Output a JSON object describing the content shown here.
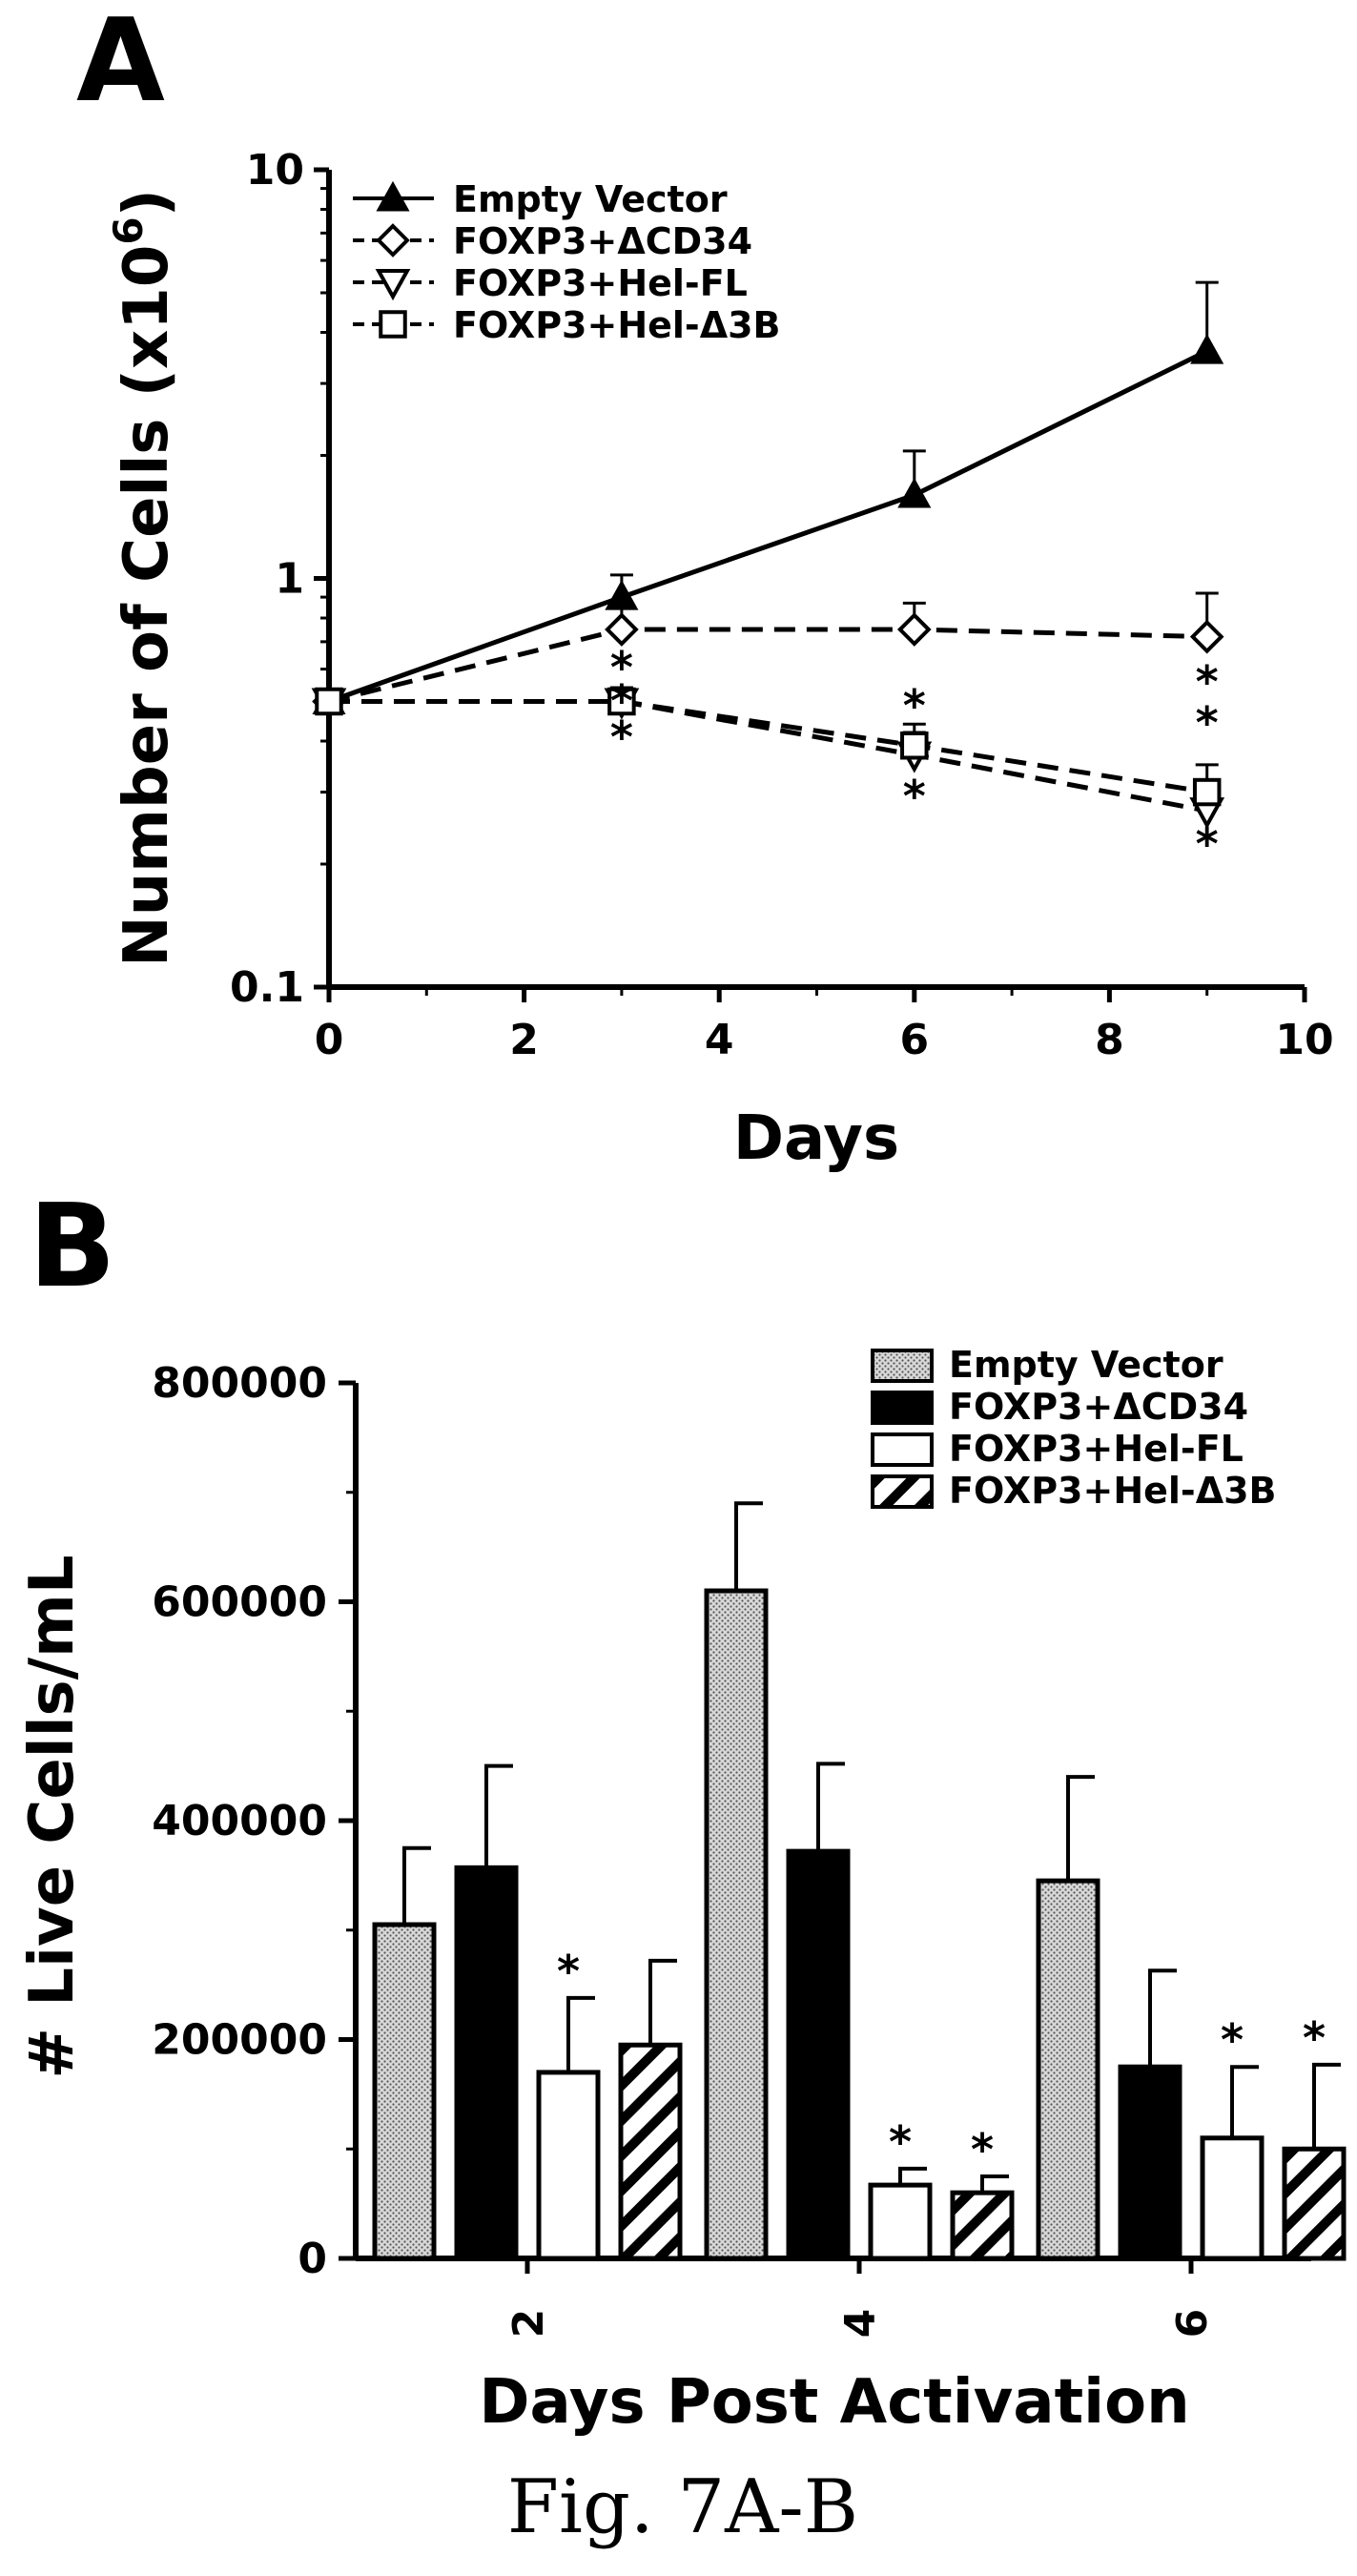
{
  "caption": "Fig. 7A-B",
  "chart_data": [
    {
      "panel": "A",
      "type": "line",
      "xlabel": "Days",
      "ylabel": "Number of Cells (x10",
      "ylabel_sup": "6",
      "ylabel_end": ")",
      "xlim": [
        0,
        10
      ],
      "ylim": [
        0.1,
        10
      ],
      "yscale": "log",
      "xticks": [
        "0",
        "2",
        "4",
        "6",
        "8",
        "10"
      ],
      "yticks": [
        "0.1",
        "1",
        "10"
      ],
      "grid": false,
      "legend_position": "top-left",
      "x": [
        0,
        3,
        6,
        9
      ],
      "series": [
        {
          "name": "Empty Vector",
          "values": [
            0.5,
            0.9,
            1.6,
            3.6
          ],
          "errors": [
            0.02,
            0.12,
            0.45,
            1.7
          ],
          "marker": "filled-triangle",
          "style": "solid"
        },
        {
          "name": "FOXP3+ΔCD34",
          "values": [
            0.5,
            0.75,
            0.75,
            0.72
          ],
          "errors": [
            0.02,
            0.1,
            0.12,
            0.2
          ],
          "marker": "open-diamond",
          "style": "dashed"
        },
        {
          "name": "FOXP3+Hel-FL",
          "values": [
            0.5,
            0.5,
            0.37,
            0.27
          ],
          "errors": [
            0.02,
            0.04,
            0.05,
            0.05
          ],
          "marker": "open-triangle-down",
          "style": "dashed"
        },
        {
          "name": "FOXP3+Hel-Δ3B",
          "values": [
            0.5,
            0.5,
            0.39,
            0.3
          ],
          "errors": [
            0.02,
            0.04,
            0.05,
            0.05
          ],
          "marker": "open-square",
          "style": "dashed"
        }
      ],
      "annotations": [
        {
          "x": 3,
          "labels": [
            "*",
            "*",
            "*"
          ]
        },
        {
          "x": 6,
          "labels": [
            "*",
            "*"
          ]
        },
        {
          "x": 9,
          "labels": [
            "*",
            "*",
            "*"
          ]
        }
      ]
    },
    {
      "panel": "B",
      "type": "bar",
      "xlabel": "Days Post Activation",
      "ylabel": "# Live Cells/mL",
      "ylim": [
        0,
        800000
      ],
      "yticks": [
        "0",
        "200000",
        "400000",
        "600000",
        "800000"
      ],
      "categories": [
        "2",
        "4",
        "6"
      ],
      "grid": false,
      "legend_position": "top-right",
      "series": [
        {
          "name": "Empty Vector",
          "values": [
            305000,
            610000,
            345000
          ],
          "errors": [
            70000,
            80000,
            95000
          ],
          "fill": "stippled-gray"
        },
        {
          "name": "FOXP3+ΔCD34",
          "values": [
            357000,
            372000,
            175000
          ],
          "errors": [
            93000,
            80000,
            88000
          ],
          "fill": "black"
        },
        {
          "name": "FOXP3+Hel-FL",
          "values": [
            170000,
            67000,
            110000
          ],
          "errors": [
            68000,
            15000,
            65000
          ],
          "fill": "white"
        },
        {
          "name": "FOXP3+Hel-Δ3B",
          "values": [
            195000,
            60000,
            100000
          ],
          "errors": [
            77000,
            15000,
            77000
          ],
          "fill": "hatched"
        }
      ],
      "significance": [
        {
          "category": "2",
          "series": "FOXP3+Hel-FL",
          "label": "*"
        },
        {
          "category": "4",
          "series": "FOXP3+Hel-FL",
          "label": "*"
        },
        {
          "category": "4",
          "series": "FOXP3+Hel-Δ3B",
          "label": "*"
        },
        {
          "category": "6",
          "series": "FOXP3+Hel-FL",
          "label": "*"
        },
        {
          "category": "6",
          "series": "FOXP3+Hel-Δ3B",
          "label": "*"
        }
      ]
    }
  ]
}
